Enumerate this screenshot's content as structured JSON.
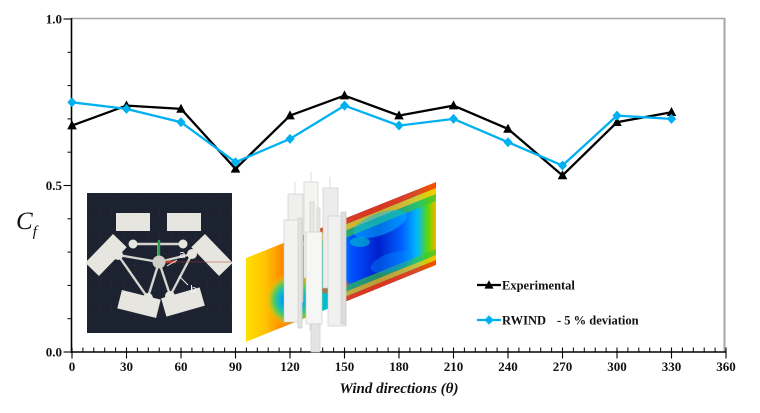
{
  "figure": {
    "y_axis_symbol": "C",
    "y_axis_symbol_sub": "f",
    "x_axis_title": "Wind directions (θ)",
    "border_color": "#a6a6a6",
    "legend": {
      "experimental_label": "Experimental",
      "rwind_label": "RWIND",
      "rwind_note": "- 5 % deviation"
    }
  },
  "chart_data": {
    "type": "line",
    "x": [
      0,
      30,
      60,
      90,
      120,
      150,
      180,
      210,
      240,
      270,
      300,
      330
    ],
    "series": [
      {
        "name": "Experimental",
        "color": "#000000",
        "marker": "triangle",
        "values": [
          0.68,
          0.74,
          0.73,
          0.55,
          0.71,
          0.77,
          0.71,
          0.74,
          0.67,
          0.53,
          0.69,
          0.72
        ]
      },
      {
        "name": "RWIND",
        "color": "#00b0f0",
        "marker": "diamond",
        "values": [
          0.75,
          0.73,
          0.69,
          0.57,
          0.64,
          0.74,
          0.68,
          0.7,
          0.63,
          0.56,
          0.71,
          0.7
        ]
      }
    ],
    "title": "",
    "xlabel": "Wind directions (θ)",
    "ylabel": "Cf",
    "xlim": [
      0,
      360
    ],
    "ylim": [
      0,
      1
    ],
    "x_tick_step": 30,
    "x_minor_step": 6,
    "y_ticks": [
      {
        "value": 0,
        "label": "0.0"
      },
      {
        "value": 0.5,
        "label": "0.5"
      },
      {
        "value": 1,
        "label": "1.0"
      }
    ],
    "y_minor_step": 0.1,
    "grid": false,
    "legend_position": "inside-right"
  },
  "insets": {
    "cad_top_view": {
      "label_a": "a",
      "label_b": "b"
    }
  }
}
